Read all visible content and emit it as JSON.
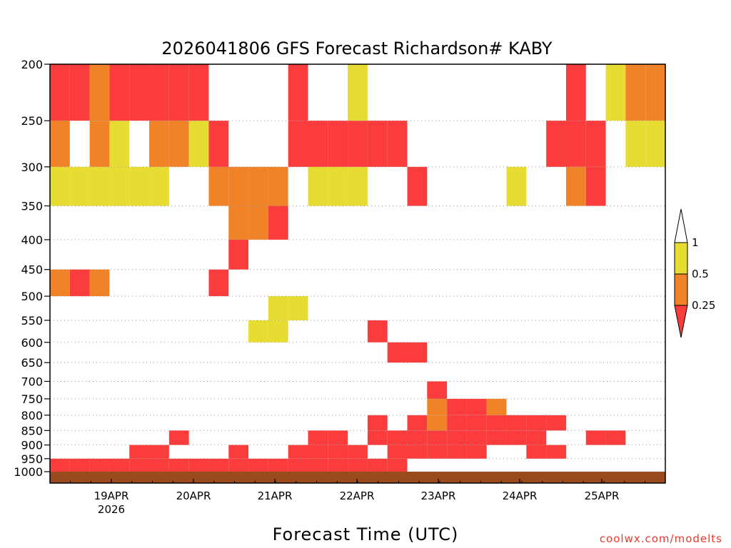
{
  "chart_data": {
    "type": "heatmap",
    "title": "2026041806 GFS Forecast Richardson# KABY",
    "xlabel": "Forecast Time (UTC)",
    "ylabel": "",
    "credit": "coolwx.com/modelts",
    "y_axis_scale": "log (pressure, hPa), inverted",
    "ylim": [
      1000,
      200
    ],
    "xlim": [
      "2026-04-18 06Z",
      "2026-04-25 18Z"
    ],
    "y_ticks": [
      "200",
      "250",
      "300",
      "350",
      "400",
      "450",
      "500",
      "550",
      "600",
      "650",
      "700",
      "750",
      "800",
      "850",
      "900",
      "950",
      "1000"
    ],
    "x_ticks": [
      "19APR",
      "20APR",
      "21APR",
      "22APR",
      "23APR",
      "24APR",
      "25APR"
    ],
    "x_sublabel": "2026",
    "grid": "dotted horizontal lines at each pressure tick",
    "legend": {
      "placement": "right",
      "labels": [
        "1",
        "0.5",
        "0.25"
      ],
      "bins": [
        {
          "range": "0.5–1",
          "color": "#e6dc32"
        },
        {
          "range": "0.25–0.5",
          "color": "#f08228"
        },
        {
          "range": "<0.25",
          "color": "#fa3c3c"
        }
      ]
    },
    "ground_color": "#9b4a1e",
    "series": [
      {
        "x": 0,
        "bins": [
          [
            "1000",
            "950",
            3
          ],
          [
            "350",
            "300",
            1
          ],
          [
            "300",
            "250",
            2
          ],
          [
            "250",
            "200",
            3
          ],
          [
            "500",
            "450",
            2
          ]
        ]
      },
      {
        "x": 1,
        "bins": [
          [
            "1000",
            "950",
            3
          ],
          [
            "350",
            "300",
            1
          ],
          [
            "250",
            "200",
            3
          ],
          [
            "500",
            "450",
            3
          ]
        ]
      },
      {
        "x": 2,
        "bins": [
          [
            "1000",
            "950",
            3
          ],
          [
            "350",
            "300",
            1
          ],
          [
            "300",
            "250",
            2
          ],
          [
            "250",
            "200",
            2
          ],
          [
            "500",
            "450",
            2
          ]
        ]
      },
      {
        "x": 3,
        "bins": [
          [
            "1000",
            "950",
            3
          ],
          [
            "350",
            "300",
            1
          ],
          [
            "300",
            "250",
            1
          ],
          [
            "250",
            "200",
            3
          ]
        ]
      },
      {
        "x": 4,
        "bins": [
          [
            "1000",
            "950",
            3
          ],
          [
            "950",
            "900",
            3
          ],
          [
            "350",
            "300",
            1
          ],
          [
            "250",
            "200",
            3
          ]
        ]
      },
      {
        "x": 5,
        "bins": [
          [
            "1000",
            "950",
            3
          ],
          [
            "950",
            "900",
            3
          ],
          [
            "350",
            "300",
            1
          ],
          [
            "300",
            "250",
            2
          ],
          [
            "250",
            "200",
            3
          ]
        ]
      },
      {
        "x": 6,
        "bins": [
          [
            "1000",
            "950",
            3
          ],
          [
            "900",
            "850",
            3
          ],
          [
            "300",
            "250",
            2
          ],
          [
            "250",
            "200",
            3
          ]
        ]
      },
      {
        "x": 7,
        "bins": [
          [
            "1000",
            "950",
            3
          ],
          [
            "300",
            "250",
            1
          ],
          [
            "250",
            "200",
            3
          ]
        ]
      },
      {
        "x": 8,
        "bins": [
          [
            "1000",
            "950",
            3
          ],
          [
            "350",
            "300",
            2
          ],
          [
            "300",
            "250",
            3
          ],
          [
            "500",
            "450",
            3
          ]
        ]
      },
      {
        "x": 9,
        "bins": [
          [
            "1000",
            "950",
            3
          ],
          [
            "950",
            "900",
            3
          ],
          [
            "350",
            "300",
            2
          ],
          [
            "400",
            "350",
            2
          ],
          [
            "450",
            "400",
            3
          ]
        ]
      },
      {
        "x": 10,
        "bins": [
          [
            "1000",
            "950",
            3
          ],
          [
            "600",
            "550",
            1
          ],
          [
            "400",
            "350",
            2
          ],
          [
            "350",
            "300",
            2
          ]
        ]
      },
      {
        "x": 11,
        "bins": [
          [
            "1000",
            "950",
            3
          ],
          [
            "600",
            "550",
            1
          ],
          [
            "550",
            "500",
            1
          ],
          [
            "400",
            "350",
            3
          ],
          [
            "350",
            "300",
            2
          ]
        ]
      },
      {
        "x": 12,
        "bins": [
          [
            "1000",
            "950",
            3
          ],
          [
            "950",
            "900",
            3
          ],
          [
            "550",
            "500",
            1
          ],
          [
            "300",
            "250",
            3
          ],
          [
            "250",
            "200",
            3
          ]
        ]
      },
      {
        "x": 13,
        "bins": [
          [
            "1000",
            "950",
            3
          ],
          [
            "950",
            "900",
            3
          ],
          [
            "900",
            "850",
            3
          ],
          [
            "350",
            "300",
            1
          ],
          [
            "300",
            "250",
            3
          ]
        ]
      },
      {
        "x": 14,
        "bins": [
          [
            "1000",
            "950",
            3
          ],
          [
            "950",
            "900",
            3
          ],
          [
            "900",
            "850",
            3
          ],
          [
            "350",
            "300",
            1
          ],
          [
            "300",
            "250",
            3
          ]
        ]
      },
      {
        "x": 15,
        "bins": [
          [
            "1000",
            "950",
            3
          ],
          [
            "950",
            "900",
            3
          ],
          [
            "350",
            "300",
            1
          ],
          [
            "300",
            "250",
            3
          ],
          [
            "250",
            "200",
            1
          ]
        ]
      },
      {
        "x": 16,
        "bins": [
          [
            "1000",
            "950",
            3
          ],
          [
            "900",
            "850",
            3
          ],
          [
            "850",
            "800",
            3
          ],
          [
            "600",
            "550",
            3
          ],
          [
            "300",
            "250",
            3
          ]
        ]
      },
      {
        "x": 17,
        "bins": [
          [
            "1000",
            "950",
            3
          ],
          [
            "950",
            "900",
            3
          ],
          [
            "900",
            "850",
            3
          ],
          [
            "650",
            "600",
            3
          ],
          [
            "300",
            "250",
            3
          ]
        ]
      },
      {
        "x": 18,
        "bins": [
          [
            "950",
            "900",
            3
          ],
          [
            "900",
            "850",
            3
          ],
          [
            "850",
            "800",
            3
          ],
          [
            "650",
            "600",
            3
          ],
          [
            "350",
            "300",
            3
          ]
        ]
      },
      {
        "x": 19,
        "bins": [
          [
            "950",
            "900",
            3
          ],
          [
            "900",
            "850",
            3
          ],
          [
            "850",
            "800",
            2
          ],
          [
            "800",
            "750",
            2
          ],
          [
            "750",
            "700",
            3
          ]
        ]
      },
      {
        "x": 20,
        "bins": [
          [
            "950",
            "900",
            3
          ],
          [
            "900",
            "850",
            3
          ],
          [
            "850",
            "800",
            3
          ],
          [
            "800",
            "750",
            3
          ]
        ]
      },
      {
        "x": 21,
        "bins": [
          [
            "950",
            "900",
            3
          ],
          [
            "900",
            "850",
            3
          ],
          [
            "850",
            "800",
            3
          ],
          [
            "800",
            "750",
            3
          ]
        ]
      },
      {
        "x": 22,
        "bins": [
          [
            "900",
            "850",
            3
          ],
          [
            "850",
            "800",
            3
          ],
          [
            "800",
            "750",
            2
          ]
        ]
      },
      {
        "x": 23,
        "bins": [
          [
            "900",
            "850",
            3
          ],
          [
            "850",
            "800",
            3
          ],
          [
            "350",
            "300",
            1
          ]
        ]
      },
      {
        "x": 24,
        "bins": [
          [
            "950",
            "900",
            3
          ],
          [
            "900",
            "850",
            3
          ],
          [
            "850",
            "800",
            3
          ]
        ]
      },
      {
        "x": 25,
        "bins": [
          [
            "950",
            "900",
            3
          ],
          [
            "850",
            "800",
            3
          ],
          [
            "300",
            "250",
            3
          ]
        ]
      },
      {
        "x": 26,
        "bins": [
          [
            "300",
            "250",
            3
          ],
          [
            "250",
            "200",
            3
          ],
          [
            "350",
            "300",
            2
          ]
        ]
      },
      {
        "x": 27,
        "bins": [
          [
            "900",
            "850",
            3
          ],
          [
            "300",
            "250",
            3
          ],
          [
            "350",
            "300",
            3
          ]
        ]
      },
      {
        "x": 28,
        "bins": [
          [
            "900",
            "850",
            3
          ],
          [
            "250",
            "200",
            1
          ]
        ]
      },
      {
        "x": 29,
        "bins": [
          [
            "250",
            "200",
            2
          ],
          [
            "300",
            "250",
            1
          ]
        ]
      },
      {
        "x": 30,
        "bins": [
          [
            "250",
            "200",
            2
          ],
          [
            "300",
            "250",
            1
          ]
        ]
      }
    ]
  }
}
